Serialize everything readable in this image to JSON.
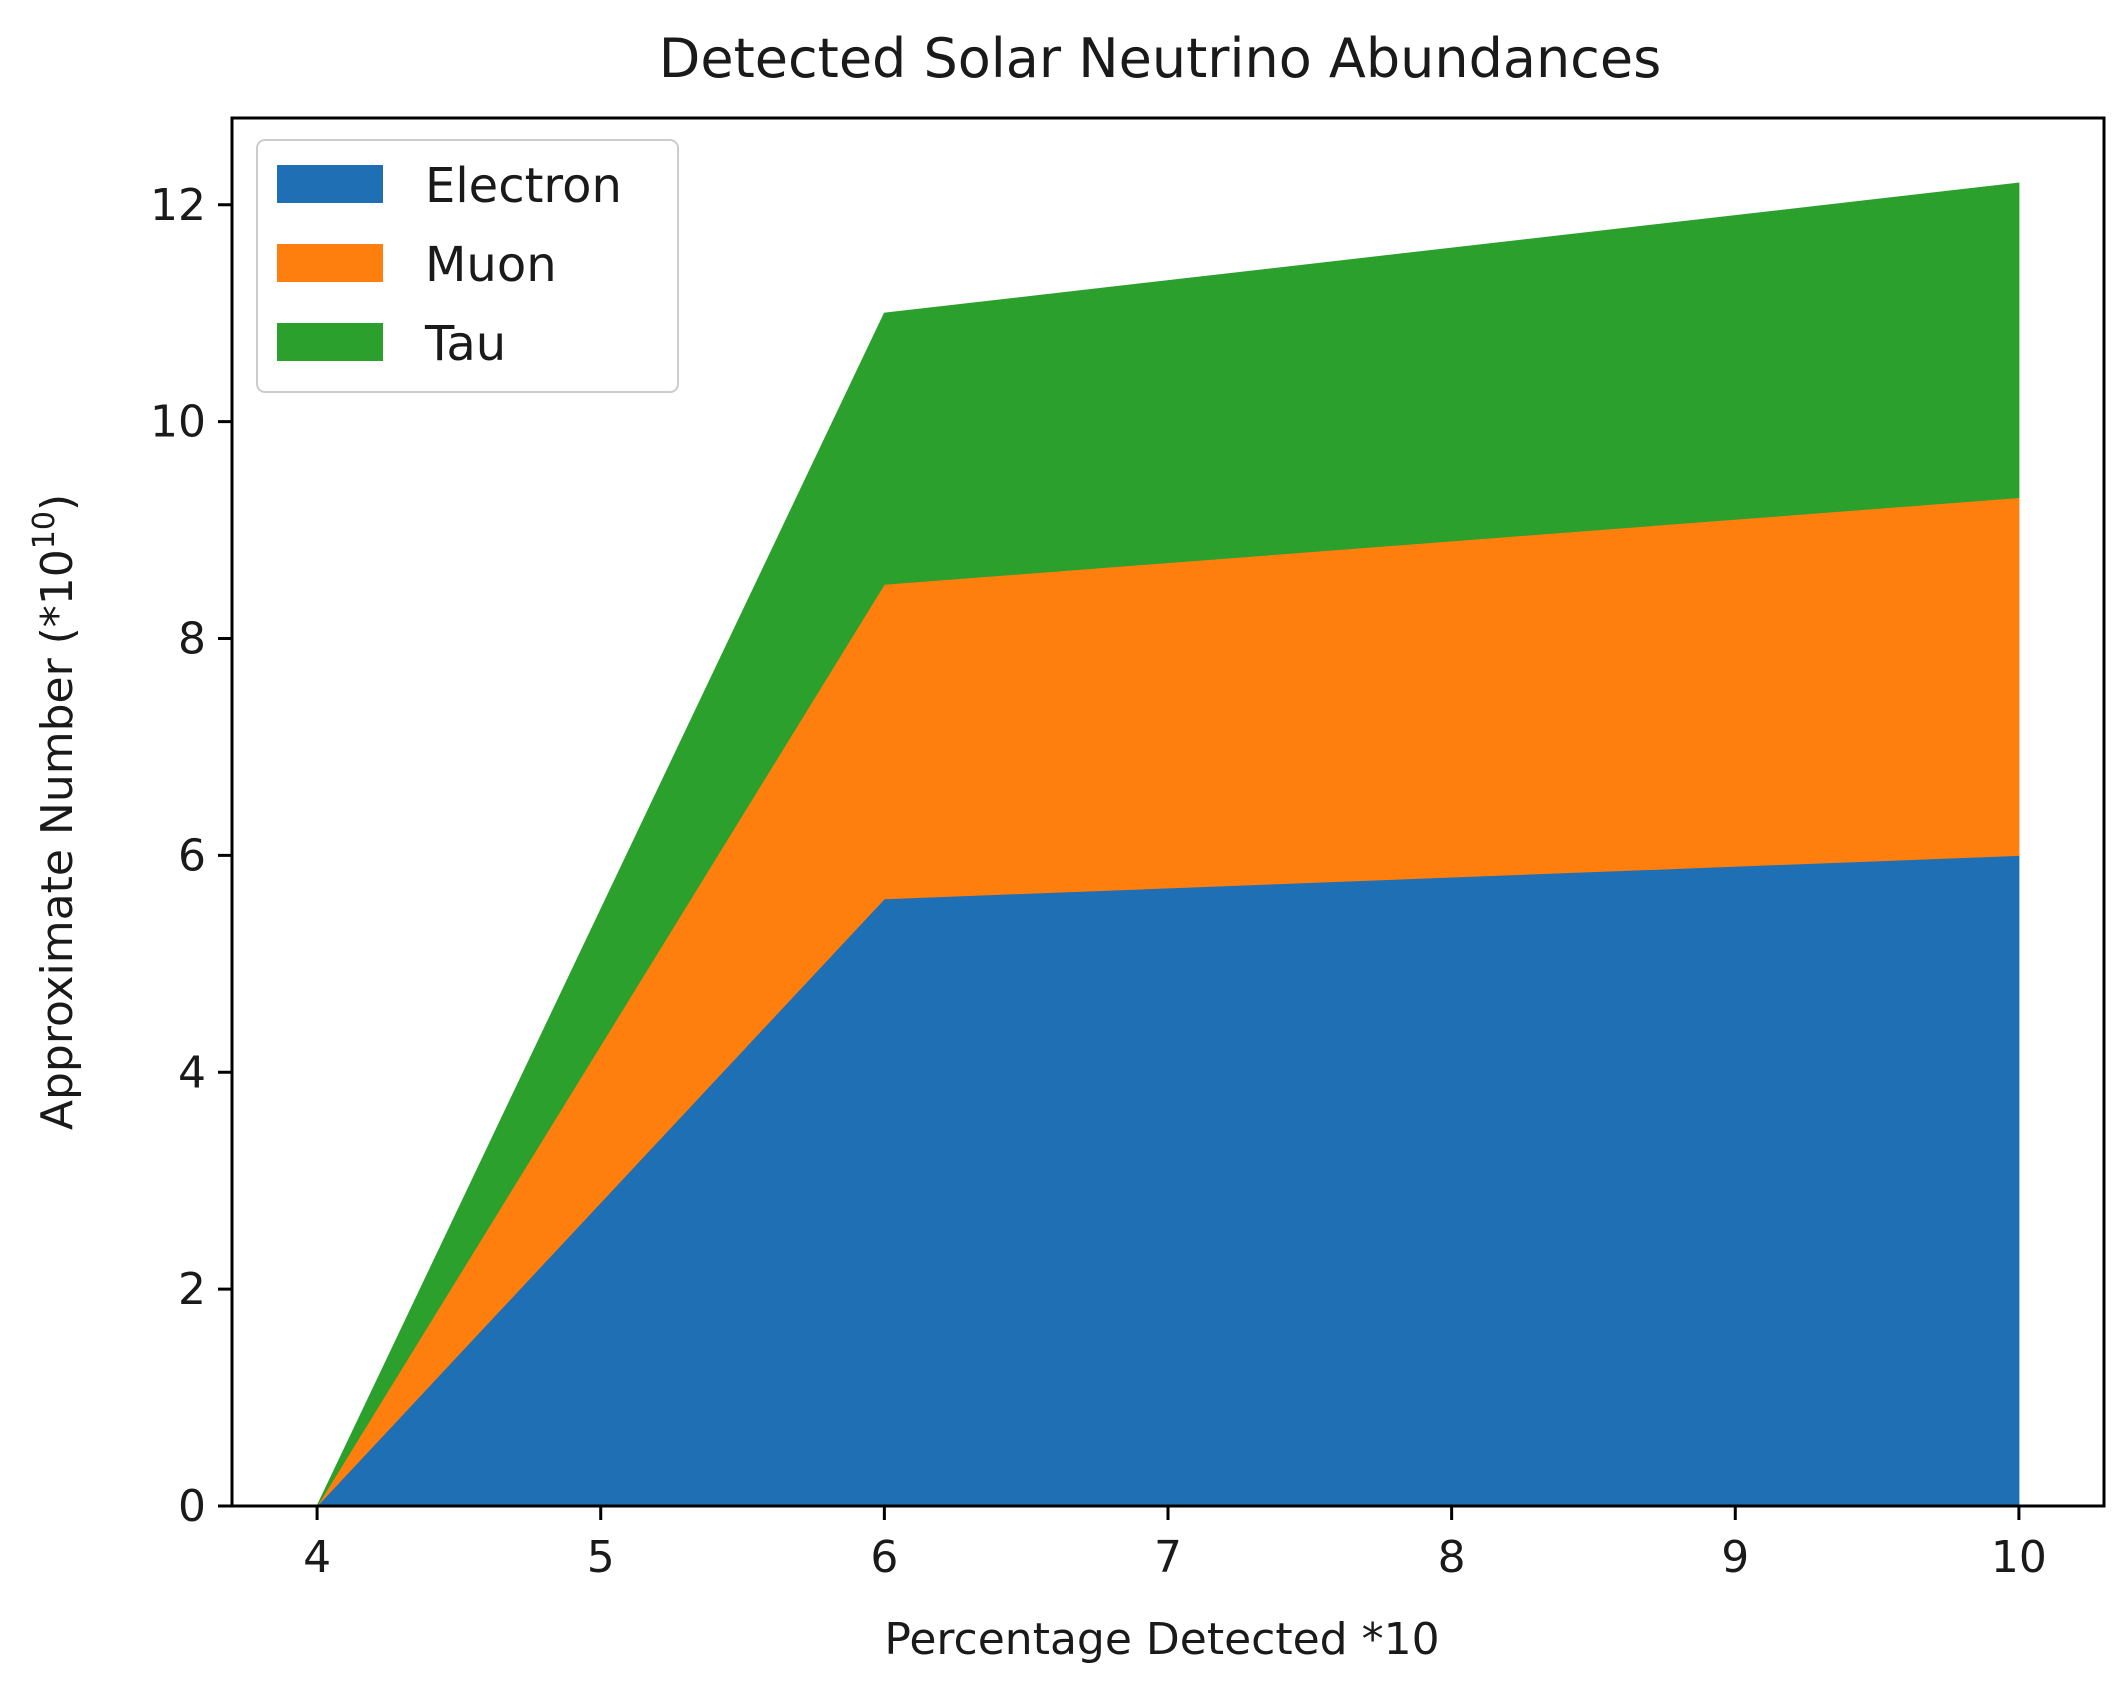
{
  "chart_data": {
    "type": "area",
    "stacked": true,
    "title": "Detected Solar Neutrino Abundances",
    "xlabel": "Percentage Detected *10",
    "ylabel": "Approximate Number (*10",
    "ylabel_superscript": "10",
    "ylabel_close": ")",
    "x": [
      4,
      6,
      10
    ],
    "series": [
      {
        "name": "Electron",
        "color": "#1f6fb4",
        "values": [
          0,
          5.6,
          6.0
        ]
      },
      {
        "name": "Muon",
        "color": "#ff7f0e",
        "values": [
          0,
          2.9,
          3.3
        ]
      },
      {
        "name": "Tau",
        "color": "#2ca02c",
        "values": [
          0,
          2.5,
          2.9
        ]
      }
    ],
    "xlim": [
      3.7,
      10.3
    ],
    "ylim": [
      0,
      12.8
    ],
    "xticks": [
      4,
      5,
      6,
      7,
      8,
      9,
      10
    ],
    "yticks": [
      0,
      2,
      4,
      6,
      8,
      10,
      12
    ],
    "grid": false,
    "legend_position": "upper-left"
  }
}
